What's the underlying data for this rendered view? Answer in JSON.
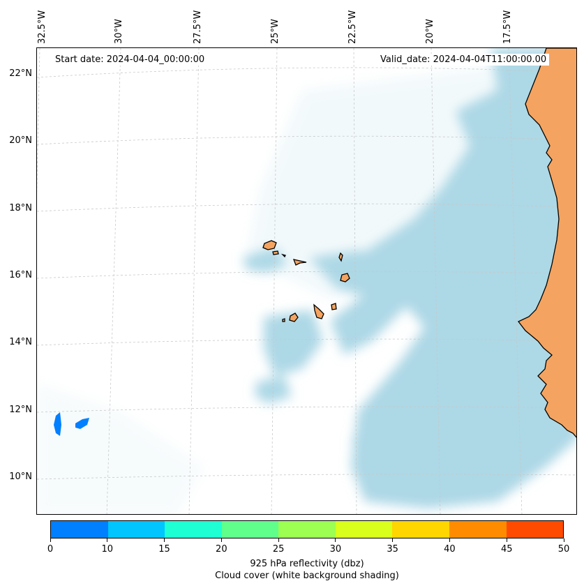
{
  "header": {
    "start_date": "Start date: 2024-04-04_00:00:00",
    "valid_date": "Valid_date: 2024-04-04T11:00:00.00"
  },
  "axes": {
    "longitude_labels": [
      "32.5°W",
      "30°W",
      "27.5°W",
      "25°W",
      "22.5°W",
      "20°W",
      "17.5°W"
    ],
    "latitude_labels": [
      "22°N",
      "20°N",
      "18°N",
      "16°N",
      "14°N",
      "12°N",
      "10°N"
    ]
  },
  "colorbar": {
    "ticks": [
      "0",
      "10",
      "15",
      "20",
      "25",
      "30",
      "35",
      "40",
      "45",
      "50"
    ],
    "colors": [
      "#007fff",
      "#00c5ff",
      "#1effd4",
      "#60ff8c",
      "#9cff52",
      "#d9ff1c",
      "#ffd600",
      "#ff8c00",
      "#ff4b00"
    ],
    "label": "925 hPa reflectivity (dbz)",
    "sublabel": "Cloud cover (white background shading)"
  },
  "map": {
    "land_color": "#f4a460",
    "cloud_color": "#add8e6",
    "reflectivity_color": "#007fff",
    "grid_color": "#c8c8c8"
  }
}
